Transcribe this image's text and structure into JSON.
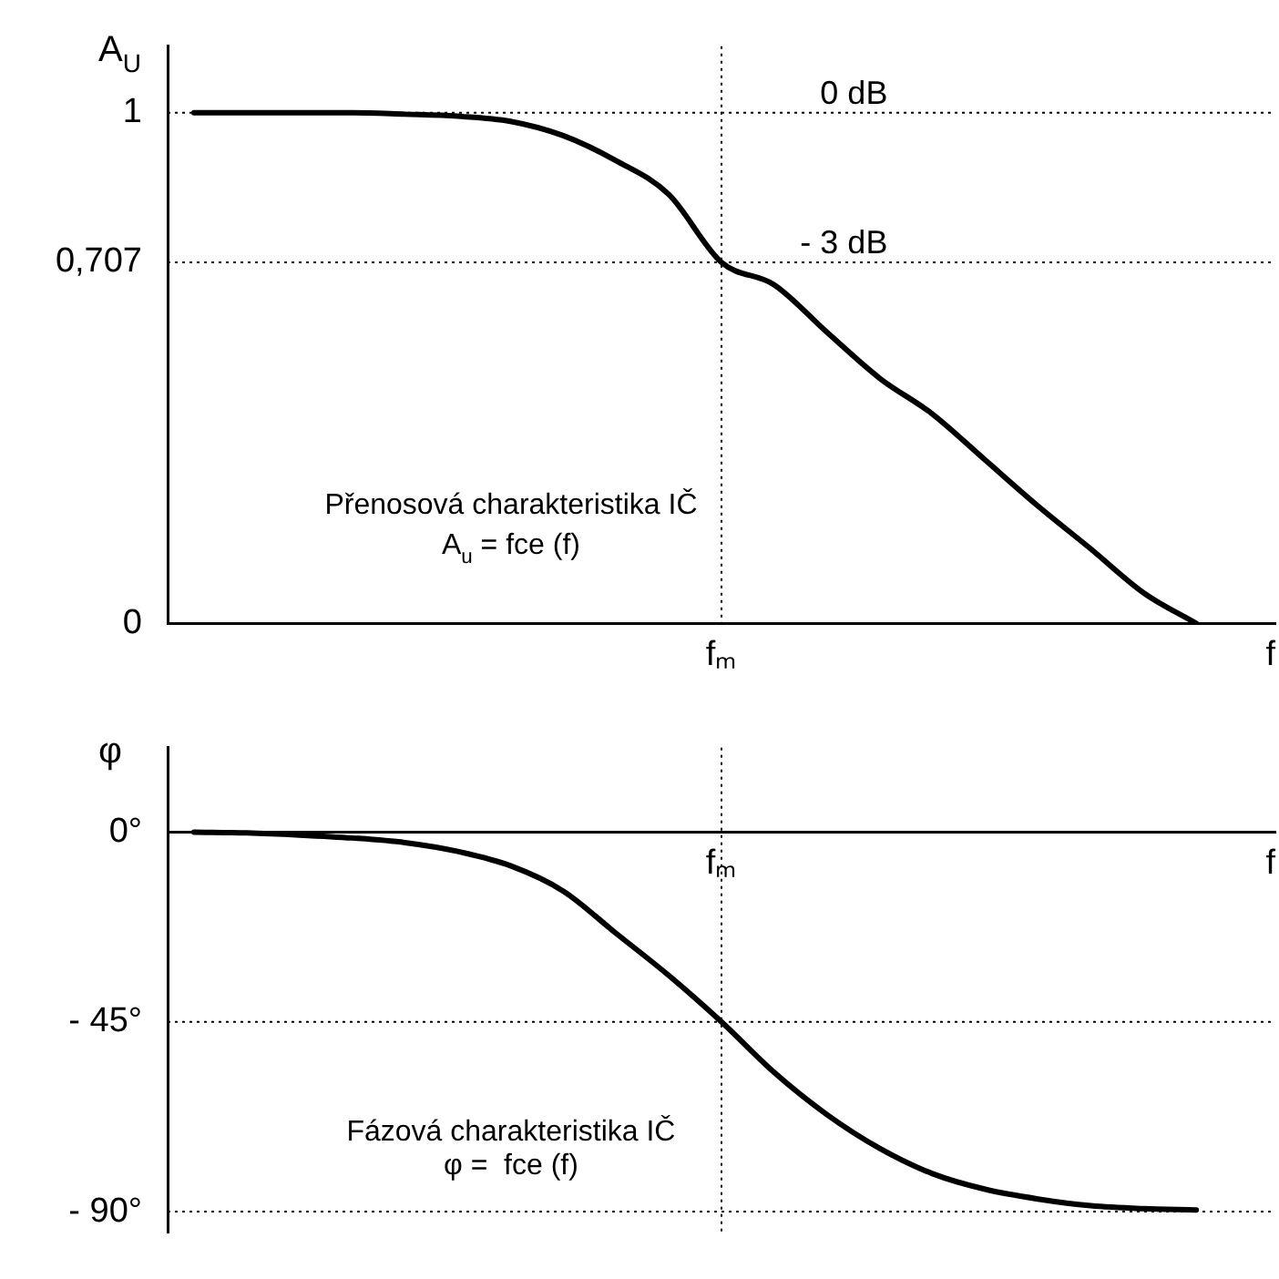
{
  "chart_data": [
    {
      "type": "line",
      "ylabel": "A$_{U}$",
      "xlabel": "f",
      "marker": "none",
      "line_style": "solid",
      "grid": false,
      "legend": false,
      "categories": [
        null,
        null,
        null,
        null,
        null,
        null,
        null,
        null,
        null,
        null,
        "fₘ",
        null,
        null,
        null,
        null,
        null,
        null,
        null,
        null,
        null,
        null
      ],
      "series": [
        {
          "color": "#000000",
          "values": [
            1,
            1,
            1,
            1,
            0.997,
            0.993,
            0.983,
            0.955,
            0.906,
            0.84,
            0.707,
            0.663,
            0.57,
            0.48,
            0.41,
            0.32,
            0.23,
            0.146,
            0.06,
            0,
            null
          ]
        }
      ],
      "ylim": [
        0,
        1.13
      ],
      "yticks": [
        0,
        {
          "value": 0.707,
          "label": "0,707"
        },
        1
      ],
      "ref_lines": [
        {
          "axis": "y",
          "value": 1,
          "label": "0 dB",
          "line_style": "dotted"
        },
        {
          "axis": "y",
          "value": 0.707,
          "label": "- 3 dB",
          "line_style": "dotted"
        },
        {
          "axis": "x",
          "value": "fₘ",
          "label": null,
          "line_style": "dotted"
        }
      ],
      "annotations": [
        "Přenosová charakteristika IČ",
        "A$_{u}$ = fce (f)"
      ]
    },
    {
      "type": "line",
      "ylabel": "φ",
      "xlabel": "f",
      "marker": "none",
      "line_style": "solid",
      "grid": false,
      "legend": false,
      "categories": [
        null,
        null,
        null,
        null,
        null,
        null,
        null,
        null,
        null,
        null,
        "fₘ",
        null,
        null,
        null,
        null,
        null,
        null,
        null,
        null,
        null,
        null
      ],
      "series": [
        {
          "color": "#000000",
          "values": [
            0,
            -0.2,
            -0.7,
            -1.4,
            -2.5,
            -4.6,
            -8,
            -14,
            -24,
            -34,
            -45,
            -57,
            -67,
            -75,
            -81,
            -84.7,
            -87,
            -88.6,
            -89.3,
            -89.6,
            null
          ]
        }
      ],
      "ylim": [
        -95,
        20
      ],
      "yticks": [
        {
          "value": -90,
          "label": "- 90°"
        },
        {
          "value": -45,
          "label": "- 45°"
        },
        {
          "value": 0,
          "label": "0°"
        }
      ],
      "ref_lines": [
        {
          "axis": "y",
          "value": -45,
          "label": null,
          "line_style": "dotted"
        },
        {
          "axis": "y",
          "value": -90,
          "label": null,
          "line_style": "dotted"
        },
        {
          "axis": "x",
          "value": "fₘ",
          "label": null,
          "line_style": "dotted"
        }
      ],
      "annotations": [
        "Fázová charakteristika IČ",
        "φ =  fce (f)"
      ]
    }
  ]
}
